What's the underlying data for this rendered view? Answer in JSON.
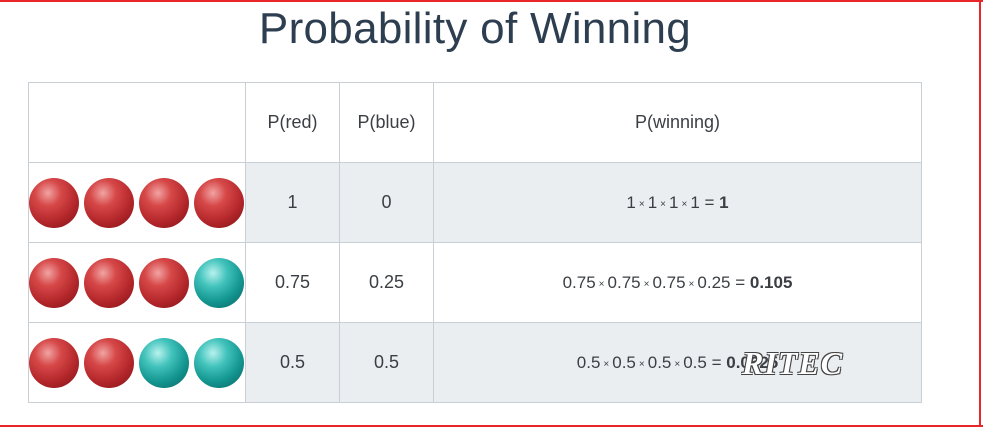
{
  "title": "Probability of Winning",
  "table": {
    "headers": [
      "",
      "P(red)",
      "P(blue)",
      "P(winning)"
    ],
    "rows": [
      {
        "balls": [
          "red",
          "red",
          "red",
          "red"
        ],
        "p_red": "1",
        "p_blue": "0",
        "factors": [
          "1",
          "1",
          "1",
          "1"
        ],
        "equals": "=",
        "result": "1"
      },
      {
        "balls": [
          "red",
          "red",
          "red",
          "blue"
        ],
        "p_red": "0.75",
        "p_blue": "0.25",
        "factors": [
          "0.75",
          "0.75",
          "0.75",
          "0.25"
        ],
        "equals": "=",
        "result": "0.105"
      },
      {
        "balls": [
          "red",
          "red",
          "blue",
          "blue"
        ],
        "p_red": "0.5",
        "p_blue": "0.5",
        "factors": [
          "0.5",
          "0.5",
          "0.5",
          "0.5"
        ],
        "equals": "=",
        "result": "0.0625"
      }
    ],
    "multiply_symbol": "×"
  },
  "watermark": "RITEC",
  "colors": {
    "frame": "#e8262a",
    "title": "#2c3e50",
    "row_shade": "#eaeef1",
    "ball_red": "#b3262a",
    "ball_blue": "#139590"
  },
  "icons": {
    "red": "red-ball-icon",
    "blue": "blue-ball-icon"
  }
}
